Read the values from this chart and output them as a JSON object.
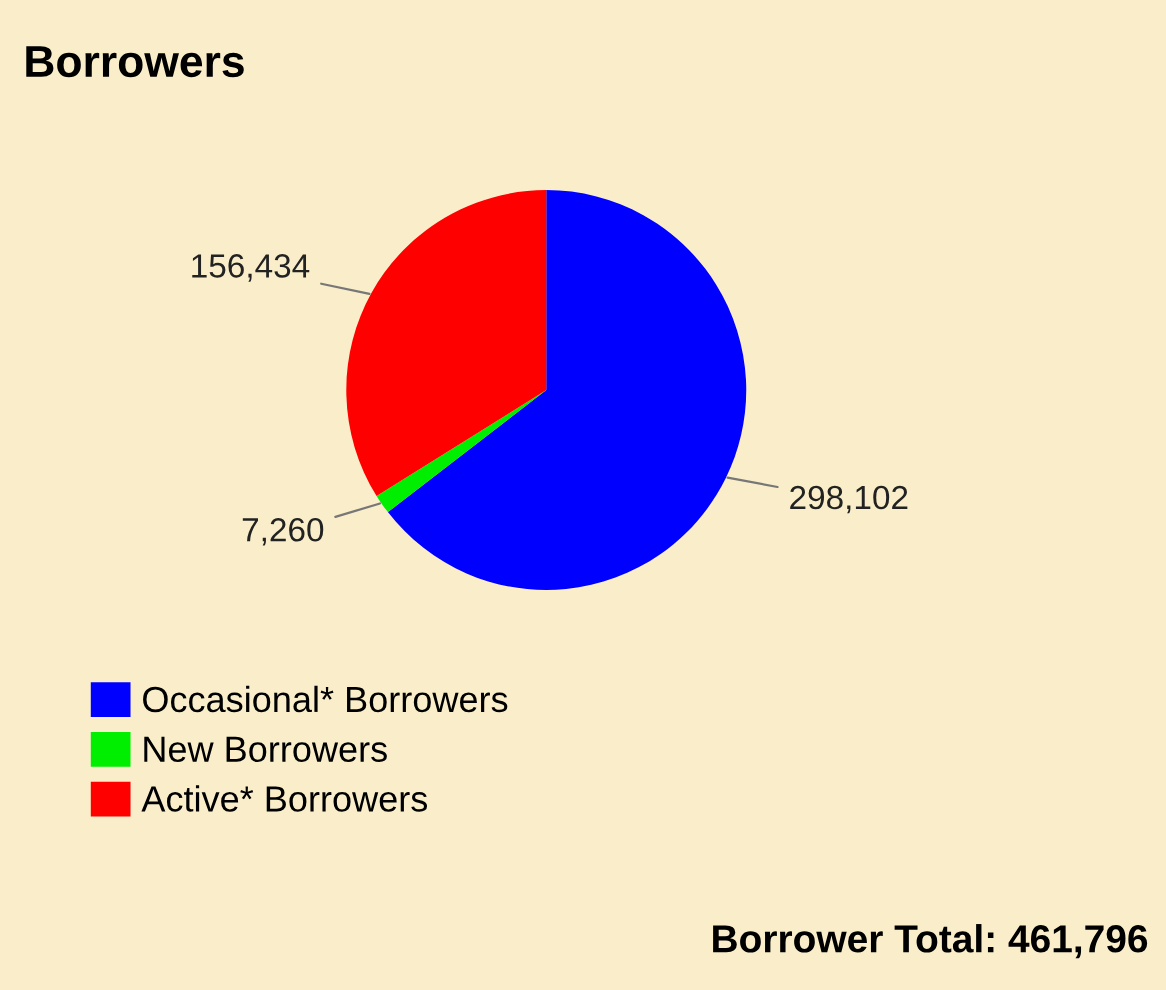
{
  "chart_data": {
    "type": "pie",
    "title": "Borrowers",
    "categories": [
      "Occasional* Borrowers",
      "New Borrowers",
      "Active* Borrowers"
    ],
    "values": [
      298102,
      7260,
      156434
    ],
    "value_labels": [
      "298,102",
      "7,260",
      "156,434"
    ],
    "colors": [
      "#0000ff",
      "#00ee00",
      "#ff0000"
    ],
    "legend": "bottom left",
    "annotations": [
      "Borrower Total: 461,796"
    ]
  }
}
